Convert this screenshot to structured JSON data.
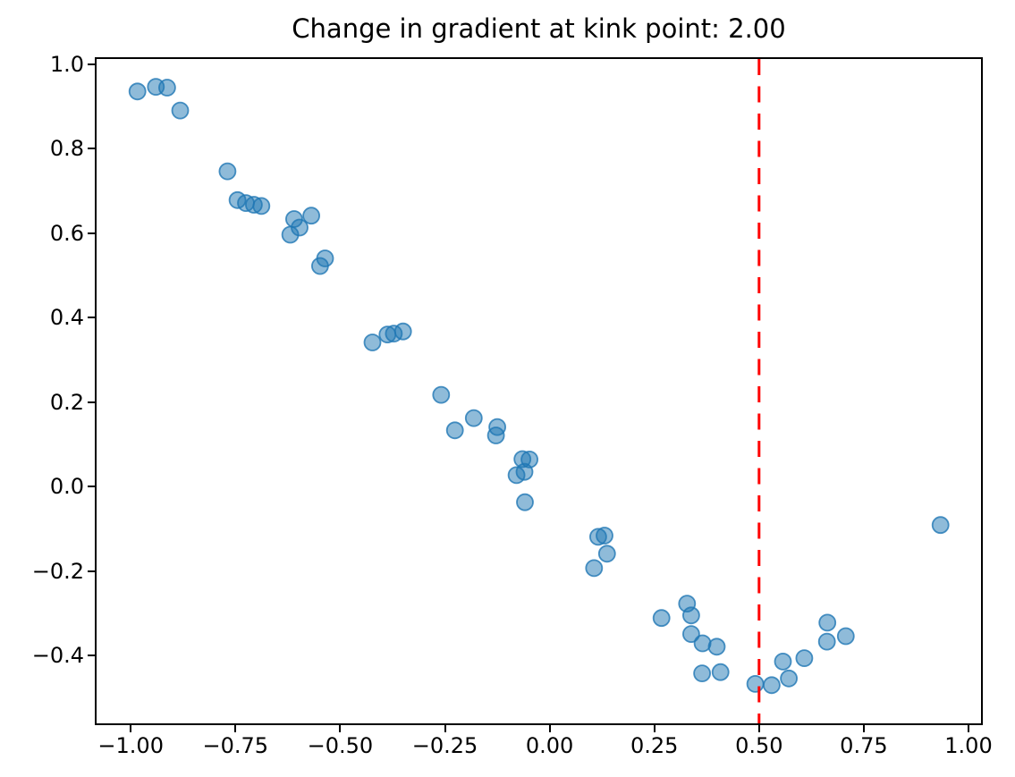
{
  "chart_data": {
    "type": "scatter",
    "title": "Change in gradient at kink point: 2.00",
    "xlabel": "",
    "ylabel": "",
    "xlim": [
      -1.0815,
      1.0298
    ],
    "ylim": [
      -0.5603,
      1.0118
    ],
    "grid": false,
    "legend": null,
    "x_ticks": [
      -1.0,
      -0.75,
      -0.5,
      -0.25,
      0.0,
      0.25,
      0.5,
      0.75,
      1.0
    ],
    "x_tick_labels": [
      "−1.00",
      "−0.75",
      "−0.50",
      "−0.25",
      "0.00",
      "0.25",
      "0.50",
      "0.75",
      "1.00"
    ],
    "y_ticks": [
      1.0,
      0.8,
      0.6,
      0.4,
      0.2,
      0.0,
      -0.2,
      -0.4
    ],
    "y_tick_labels": [
      "1.0",
      "0.8",
      "0.6",
      "0.4",
      "0.2",
      "0.0",
      "−0.2",
      "−0.4"
    ],
    "point_color": "#1f77b4",
    "point_alpha": 0.5,
    "point_edge_alpha": 0.8,
    "vline": {
      "x": 0.5,
      "color": "#ff0000",
      "style": "dashed"
    },
    "points": [
      [
        -0.984,
        0.935
      ],
      [
        -0.94,
        0.946
      ],
      [
        -0.913,
        0.944
      ],
      [
        -0.882,
        0.89
      ],
      [
        -0.769,
        0.746
      ],
      [
        -0.745,
        0.678
      ],
      [
        -0.725,
        0.671
      ],
      [
        -0.706,
        0.667
      ],
      [
        -0.688,
        0.664
      ],
      [
        -0.61,
        0.633
      ],
      [
        -0.569,
        0.641
      ],
      [
        -0.597,
        0.613
      ],
      [
        -0.619,
        0.596
      ],
      [
        -0.536,
        0.54
      ],
      [
        -0.548,
        0.522
      ],
      [
        -0.423,
        0.341
      ],
      [
        -0.387,
        0.36
      ],
      [
        -0.372,
        0.362
      ],
      [
        -0.35,
        0.367
      ],
      [
        -0.259,
        0.217
      ],
      [
        -0.226,
        0.133
      ],
      [
        -0.181,
        0.162
      ],
      [
        -0.125,
        0.141
      ],
      [
        -0.128,
        0.121
      ],
      [
        -0.065,
        0.065
      ],
      [
        -0.048,
        0.064
      ],
      [
        -0.06,
        0.035
      ],
      [
        -0.079,
        0.027
      ],
      [
        -0.059,
        -0.037
      ],
      [
        0.116,
        -0.119
      ],
      [
        0.131,
        -0.116
      ],
      [
        0.137,
        -0.159
      ],
      [
        0.106,
        -0.193
      ],
      [
        0.267,
        -0.311
      ],
      [
        0.328,
        -0.277
      ],
      [
        0.338,
        -0.305
      ],
      [
        0.338,
        -0.349
      ],
      [
        0.365,
        -0.371
      ],
      [
        0.399,
        -0.379
      ],
      [
        0.364,
        -0.442
      ],
      [
        0.408,
        -0.439
      ],
      [
        0.491,
        -0.467
      ],
      [
        0.53,
        -0.47
      ],
      [
        0.571,
        -0.454
      ],
      [
        0.557,
        -0.414
      ],
      [
        0.608,
        -0.406
      ],
      [
        0.663,
        -0.322
      ],
      [
        0.662,
        -0.367
      ],
      [
        0.707,
        -0.354
      ],
      [
        0.933,
        -0.091
      ]
    ]
  }
}
